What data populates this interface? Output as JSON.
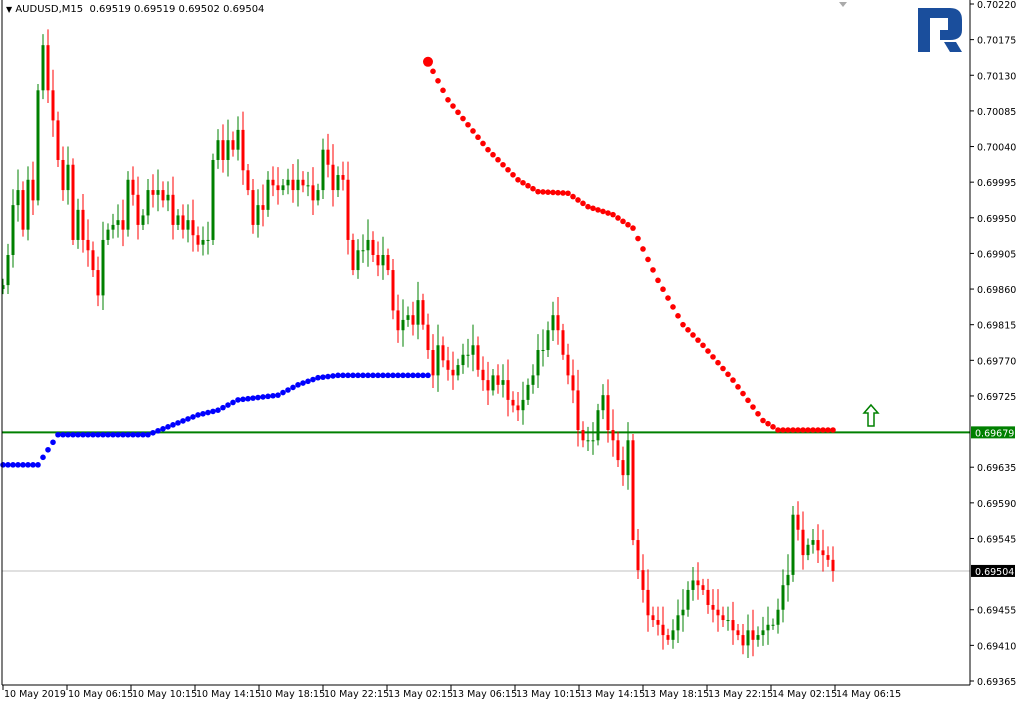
{
  "header": {
    "menu_icon": "triangle-down-icon",
    "symbol": "AUDUSD,M15",
    "ohlc": "0.69519 0.69519 0.69502 0.69504"
  },
  "colors": {
    "bull": "#008000",
    "bear": "#ff0000",
    "sar_below": "#0000ff",
    "sar_above": "#ff0000",
    "level_line": "#008000",
    "bid_line": "#c0c0c0",
    "logo": "#1a4e9c"
  },
  "chart_data": {
    "type": "candlestick",
    "title": "AUDUSD,M15",
    "ylim": [
      0.69365,
      0.7022
    ],
    "y_ticks": [
      "0.70220",
      "0.70175",
      "0.70130",
      "0.70085",
      "0.70040",
      "0.69995",
      "0.69950",
      "0.69905",
      "0.69860",
      "0.69815",
      "0.69770",
      "0.69725",
      "0.69635",
      "0.69590",
      "0.69545",
      "0.69455",
      "0.69410",
      "0.69365"
    ],
    "x_ticks": [
      "10 May 2019",
      "10 May 06:15",
      "10 May 10:15",
      "10 May 14:15",
      "10 May 18:15",
      "10 May 22:15",
      "13 May 02:15",
      "13 May 06:15",
      "13 May 10:15",
      "13 May 14:15",
      "13 May 18:15",
      "13 May 22:15",
      "14 May 02:15",
      "14 May 06:15"
    ],
    "first_open": 0.6986,
    "closes": [
      0.69865,
      0.69903,
      0.69966,
      0.69985,
      0.69935,
      0.69998,
      0.69972,
      0.70111,
      0.70168,
      0.70111,
      0.70073,
      0.70023,
      0.69985,
      0.70017,
      0.69922,
      0.6996,
      0.69922,
      0.69909,
      0.69884,
      0.69852,
      0.69922,
      0.69935,
      0.69941,
      0.69947,
      0.69935,
      0.69998,
      0.69979,
      0.69941,
      0.69953,
      0.69985,
      0.69979,
      0.69985,
      0.69972,
      0.69979,
      0.69941,
      0.69953,
      0.69935,
      0.69947,
      0.69928,
      0.69916,
      0.69922,
      0.69922,
      0.70023,
      0.70048,
      0.70023,
      0.70048,
      0.70036,
      0.70061,
      0.7001,
      0.69985,
      0.69941,
      0.69966,
      0.6996,
      0.69998,
      0.69991,
      0.69985,
      0.69991,
      0.69998,
      0.69985,
      0.69998,
      0.69991,
      0.69991,
      0.69972,
      0.69985,
      0.70036,
      0.70017,
      0.69985,
      0.70004,
      0.69998,
      0.69922,
      0.69884,
      0.69909,
      0.69909,
      0.69922,
      0.69903,
      0.6989,
      0.69903,
      0.69884,
      0.69833,
      0.69808,
      0.69821,
      0.69827,
      0.69815,
      0.69846,
      0.69815,
      0.69783,
      0.69751,
      0.69789,
      0.6977,
      0.69758,
      0.69751,
      0.69764,
      0.69777,
      0.69777,
      0.69789,
      0.69758,
      0.69745,
      0.69732,
      0.69751,
      0.69739,
      0.69745,
      0.6972,
      0.69713,
      0.69707,
      0.6972,
      0.69739,
      0.69751,
      0.69783,
      0.69783,
      0.69808,
      0.69827,
      0.69808,
      0.69777,
      0.69751,
      0.69732,
      0.69682,
      0.69669,
      0.69669,
      0.69669,
      0.69707,
      0.69726,
      0.69682,
      0.69669,
      0.69644,
      0.69625,
      0.69669,
      0.69543,
      0.69505,
      0.6948,
      0.69448,
      0.69442,
      0.69436,
      0.69423,
      0.69417,
      0.69429,
      0.69448,
      0.69455,
      0.6948,
      0.69492,
      0.69486,
      0.6948,
      0.69461,
      0.69455,
      0.69448,
      0.69442,
      0.69442,
      0.69429,
      0.69423,
      0.6941,
      0.69429,
      0.69417,
      0.69423,
      0.69429,
      0.69436,
      0.69436,
      0.69455,
      0.69486,
      0.69499,
      0.69575,
      0.69556,
      0.69524,
      0.69537,
      0.69543,
      0.6953,
      0.69524,
      0.69518,
      0.69504
    ],
    "parabolic_sar": {
      "below": [
        [
          0,
          0.69638
        ],
        [
          7,
          0.69638
        ],
        [
          11,
          0.69676
        ],
        [
          29,
          0.69676
        ],
        [
          39,
          0.69701
        ],
        [
          43,
          0.69707
        ],
        [
          47,
          0.6972
        ],
        [
          55,
          0.69726
        ],
        [
          59,
          0.69739
        ],
        [
          63,
          0.69748
        ],
        [
          67,
          0.69751
        ],
        [
          85,
          0.69751
        ]
      ],
      "above": [
        [
          85,
          0.70147
        ],
        [
          89,
          0.70099
        ],
        [
          97,
          0.70036
        ],
        [
          103,
          0.69998
        ],
        [
          107,
          0.69983
        ],
        [
          113,
          0.69981
        ],
        [
          117,
          0.69964
        ],
        [
          122,
          0.69954
        ],
        [
          126,
          0.69937
        ],
        [
          131,
          0.69871
        ],
        [
          136,
          0.69815
        ],
        [
          140,
          0.69789
        ],
        [
          146,
          0.69745
        ],
        [
          152,
          0.69694
        ],
        [
          155,
          0.69682
        ],
        [
          166,
          0.69682
        ]
      ]
    },
    "horizontal_line": {
      "value": 0.69679,
      "label": "0.69679"
    },
    "bid_line": {
      "value": 0.69504,
      "label": "0.69504"
    },
    "arrow_up": {
      "value": 0.69701,
      "icon": "arrow-up-outline-icon"
    },
    "grid": false
  }
}
